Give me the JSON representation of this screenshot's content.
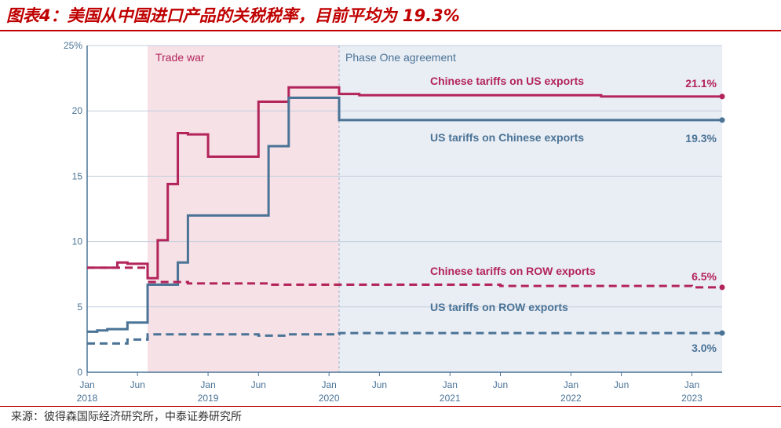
{
  "header": {
    "title": "图表4：美国从中国进口产品的关税税率，目前平均为 19.3%"
  },
  "footer": {
    "source": "来源：彼得森国际经济研究所，中泰证券研究所"
  },
  "colors": {
    "accent": "#c00000",
    "china_series": "#b3245a",
    "us_series": "#4a7396",
    "trade_war_shade": "#f6e1e7",
    "phase_one_shade": "#e9edf4",
    "axis_text": "#4a7396"
  },
  "chart_data": {
    "type": "line",
    "title": "",
    "xlabel": "",
    "ylabel": "",
    "ylim": [
      0,
      25
    ],
    "y_ticks": [
      0,
      5,
      10,
      15,
      20,
      25
    ],
    "y_tick_labels": [
      "0",
      "5",
      "10",
      "15",
      "20",
      "25%"
    ],
    "x_range": [
      "2018-01",
      "2023-04"
    ],
    "x_ticks": [
      {
        "x": "2018-01",
        "label": "Jan",
        "year": "2018"
      },
      {
        "x": "2018-06",
        "label": "Jun",
        "year": ""
      },
      {
        "x": "2019-01",
        "label": "Jan",
        "year": "2019"
      },
      {
        "x": "2019-06",
        "label": "Jun",
        "year": ""
      },
      {
        "x": "2020-01",
        "label": "Jan",
        "year": "2020"
      },
      {
        "x": "2020-06",
        "label": "Jun",
        "year": ""
      },
      {
        "x": "2021-01",
        "label": "Jan",
        "year": "2021"
      },
      {
        "x": "2021-06",
        "label": "Jun",
        "year": ""
      },
      {
        "x": "2022-01",
        "label": "Jan",
        "year": "2022"
      },
      {
        "x": "2022-06",
        "label": "Jun",
        "year": ""
      },
      {
        "x": "2023-01",
        "label": "Jan",
        "year": "2023"
      }
    ],
    "grid": true,
    "regions": [
      {
        "label": "Trade war",
        "from": "2018-07",
        "to": "2020-02",
        "color": "#f6e1e7"
      },
      {
        "label": "Phase One agreement",
        "from": "2020-02",
        "to": "2023-04",
        "color": "#e9edf4"
      }
    ],
    "series": [
      {
        "name": "Chinese tariffs on US exports",
        "color": "#b3245a",
        "dash": false,
        "end_label": "21.1%",
        "x": [
          "2018-01",
          "2018-04",
          "2018-05",
          "2018-07",
          "2018-08",
          "2018-09",
          "2018-10",
          "2018-11",
          "2019-01",
          "2019-06",
          "2019-09",
          "2019-12",
          "2020-02",
          "2020-04",
          "2021-01",
          "2022-04",
          "2023-04"
        ],
        "y": [
          8.0,
          8.4,
          8.3,
          7.2,
          10.1,
          14.4,
          18.3,
          18.2,
          16.5,
          20.7,
          21.8,
          21.8,
          21.3,
          21.2,
          21.2,
          21.1,
          21.1
        ]
      },
      {
        "name": "US tariffs on Chinese exports",
        "color": "#4a7396",
        "dash": false,
        "end_label": "19.3%",
        "x": [
          "2018-01",
          "2018-02",
          "2018-03",
          "2018-05",
          "2018-07",
          "2018-08",
          "2018-10",
          "2018-11",
          "2019-06",
          "2019-07",
          "2019-09",
          "2020-01",
          "2020-02",
          "2021-01",
          "2023-04"
        ],
        "y": [
          3.1,
          3.2,
          3.3,
          3.8,
          6.7,
          6.7,
          8.4,
          12.0,
          12.0,
          17.3,
          21.0,
          21.0,
          19.3,
          19.3,
          19.3
        ]
      },
      {
        "name": "Chinese tariffs on ROW exports",
        "color": "#b3245a",
        "dash": true,
        "end_label": "6.5%",
        "x": [
          "2018-01",
          "2018-05",
          "2018-06",
          "2018-07",
          "2018-10",
          "2018-11",
          "2019-07",
          "2020-01",
          "2021-06",
          "2023-01",
          "2023-04"
        ],
        "y": [
          8.0,
          8.0,
          8.0,
          6.9,
          6.9,
          6.8,
          6.7,
          6.7,
          6.6,
          6.5,
          6.5
        ]
      },
      {
        "name": "US tariffs on ROW exports",
        "color": "#4a7396",
        "dash": true,
        "end_label": "3.0%",
        "x": [
          "2018-01",
          "2018-03",
          "2018-05",
          "2018-07",
          "2019-01",
          "2019-06",
          "2019-09",
          "2020-02",
          "2023-04"
        ],
        "y": [
          2.2,
          2.2,
          2.5,
          2.9,
          2.9,
          2.8,
          2.9,
          3.0,
          3.0
        ]
      }
    ]
  }
}
